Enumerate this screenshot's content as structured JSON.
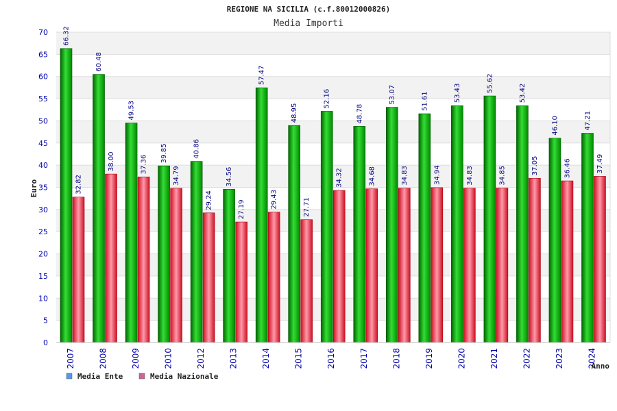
{
  "chart_data": {
    "type": "bar",
    "title": "REGIONE NA SICILIA (c.f.80012000826)",
    "subtitle": "Media Importi",
    "xlabel": "Anno",
    "ylabel": "Euro",
    "ylim": [
      0,
      70
    ],
    "ytick_step": 5,
    "grid": true,
    "legend_position": "bottom-left",
    "categories": [
      "2007",
      "2008",
      "2009",
      "2010",
      "2012",
      "2013",
      "2014",
      "2015",
      "2016",
      "2017",
      "2018",
      "2019",
      "2020",
      "2021",
      "2022",
      "2023",
      "2024"
    ],
    "series": [
      {
        "name": "Media Ente",
        "color": "#00aa00",
        "legend_color": "#5599ee",
        "values": [
          66.32,
          60.48,
          49.53,
          39.85,
          40.86,
          34.56,
          57.47,
          48.95,
          52.16,
          48.78,
          53.07,
          51.61,
          53.43,
          55.62,
          53.42,
          46.1,
          47.21
        ],
        "labels": [
          "66.32",
          "60.48",
          "49.53",
          "39.85",
          "40.86",
          "34.56",
          "57.47",
          "48.95",
          "52.16",
          "48.78",
          "53.07",
          "51.61",
          "53.43",
          "55.62",
          "53.42",
          "46.10",
          "47.21"
        ]
      },
      {
        "name": "Media Nazionale",
        "color": "#dd2233",
        "legend_color": "#cc6699",
        "values": [
          32.82,
          38.0,
          37.36,
          34.79,
          29.24,
          27.19,
          29.43,
          27.71,
          34.32,
          34.68,
          34.83,
          34.94,
          34.83,
          34.85,
          37.05,
          36.46,
          37.49
        ],
        "labels": [
          "32.82",
          "38.00",
          "37.36",
          "34.79",
          "29.24",
          "27.19",
          "29.43",
          "27.71",
          "34.32",
          "34.68",
          "34.83",
          "34.94",
          "34.83",
          "34.85",
          "37.05",
          "36.46",
          "37.49"
        ]
      }
    ]
  }
}
